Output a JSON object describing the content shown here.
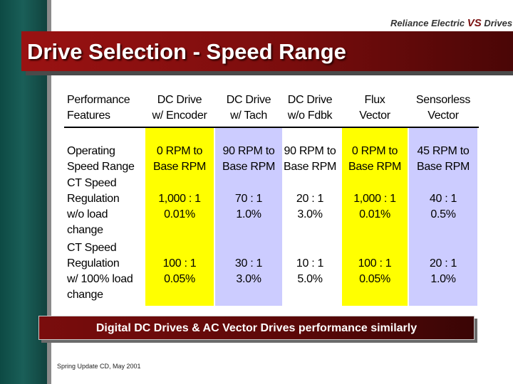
{
  "branding": {
    "logo_text": "Reliance Electric",
    "logo_mark": "VS",
    "logo_suffix": "Drives"
  },
  "slide": {
    "title": "Drive Selection - Speed Range"
  },
  "table": {
    "headers": [
      [
        "Performance",
        "Features"
      ],
      [
        "DC Drive",
        "w/ Encoder"
      ],
      [
        "DC Drive",
        "w/ Tach"
      ],
      [
        "DC Drive",
        "w/o Fdbk"
      ],
      [
        "Flux",
        "Vector"
      ],
      [
        "Sensorless",
        "Vector"
      ]
    ],
    "rows": [
      {
        "label": [
          "Operating",
          "Speed Range"
        ],
        "values": [
          [
            "0 RPM to",
            "Base RPM"
          ],
          [
            "90 RPM to",
            "Base RPM"
          ],
          [
            "90 RPM to",
            "Base RPM"
          ],
          [
            "0 RPM to",
            "Base RPM"
          ],
          [
            "45 RPM to",
            "Base RPM"
          ]
        ]
      },
      {
        "label": [
          "CT Speed",
          "Regulation",
          "w/o load",
          "change"
        ],
        "values": [
          [
            "1,000 : 1",
            "0.01%"
          ],
          [
            "70 : 1",
            "1.0%"
          ],
          [
            "20 : 1",
            "3.0%"
          ],
          [
            "1,000 : 1",
            "0.01%"
          ],
          [
            "40 : 1",
            "0.5%"
          ]
        ]
      },
      {
        "label": [
          "CT Speed",
          "Regulation",
          "w/ 100% load",
          "change"
        ],
        "values": [
          [
            "100 : 1",
            "0.05%"
          ],
          [
            "30 : 1",
            "3.0%"
          ],
          [
            "10 : 1",
            "5.0%"
          ],
          [
            "100 : 1",
            "0.05%"
          ],
          [
            "20 : 1",
            "1.0%"
          ]
        ]
      }
    ]
  },
  "footer": {
    "banner": "Digital DC Drives & AC Vector Drives performance similarly",
    "credit": "Spring Update CD, May 2001"
  },
  "colors": {
    "title_red": "#9a1212",
    "highlight_yellow": "#ffff00",
    "highlight_lavender": "#ccccff",
    "sidebar_teal": "#1a5f58"
  }
}
